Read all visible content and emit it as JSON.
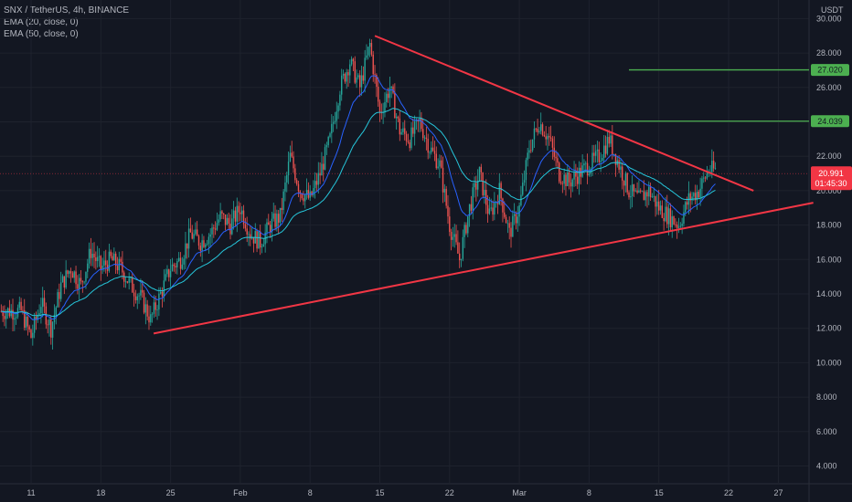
{
  "legend": {
    "symbol_line": "SNX / TetherUS, 4h, BINANCE",
    "ema1": "EMA (20, close, 0)",
    "ema2": "EMA (50, close, 0)"
  },
  "colors": {
    "background": "#131722",
    "grid": "#1e222d",
    "axis_text": "#b2b5be",
    "trendline": "#f23645",
    "target_line": "#4caf50",
    "target_label_bg": "#4caf50",
    "price_label_bg": "#f23645",
    "ema20": "#2962ff",
    "ema50": "#26c6da",
    "candle_up": "#26a69a",
    "candle_down": "#ef5350"
  },
  "chart_data": {
    "type": "candlestick",
    "currency_label": "USDT",
    "y_ticks": [
      "4.000",
      "6.000",
      "8.000",
      "10.000",
      "12.000",
      "14.000",
      "16.000",
      "18.000",
      "20.000",
      "22.000",
      "24.000",
      "26.000",
      "28.000",
      "30.000"
    ],
    "ylim": [
      3.0,
      31.0
    ],
    "x_ticks": [
      {
        "label": "11",
        "day": 0
      },
      {
        "label": "18",
        "day": 7
      },
      {
        "label": "25",
        "day": 14
      },
      {
        "label": "Feb",
        "day": 21
      },
      {
        "label": "8",
        "day": 28
      },
      {
        "label": "15",
        "day": 35
      },
      {
        "label": "22",
        "day": 42
      },
      {
        "label": "Mar",
        "day": 49
      },
      {
        "label": "8",
        "day": 56
      },
      {
        "label": "15",
        "day": 63
      },
      {
        "label": "22",
        "day": 70
      },
      {
        "label": "27",
        "day": 75
      }
    ],
    "current_price": {
      "value": 20.991,
      "label": "20.991",
      "countdown": "01:45:30"
    },
    "target_levels": [
      {
        "value": 27.02,
        "label": "27.020"
      },
      {
        "value": 24.039,
        "label": "24.039"
      }
    ],
    "trendlines": [
      {
        "name": "upper",
        "points": [
          [
            34.5,
            29.0
          ],
          [
            72.5,
            20.0
          ]
        ]
      },
      {
        "name": "lower",
        "points": [
          [
            12.3,
            11.7
          ],
          [
            78.5,
            19.3
          ]
        ]
      }
    ],
    "price_path": [
      [
        -1,
        13
      ],
      [
        0,
        11.5
      ],
      [
        1,
        13.5
      ],
      [
        2,
        12
      ],
      [
        3,
        14.5
      ],
      [
        4,
        15.5
      ],
      [
        5,
        14.5
      ],
      [
        6,
        16.5
      ],
      [
        7,
        15.5
      ],
      [
        8,
        16
      ],
      [
        9,
        15.5
      ],
      [
        10,
        14.5
      ],
      [
        11,
        13.8
      ],
      [
        12,
        12.5
      ],
      [
        13,
        14
      ],
      [
        14,
        15.5
      ],
      [
        15,
        16
      ],
      [
        16,
        17.5
      ],
      [
        17,
        17
      ],
      [
        18,
        17.5
      ],
      [
        19,
        18.5
      ],
      [
        20,
        18
      ],
      [
        21,
        19
      ],
      [
        22,
        17.5
      ],
      [
        23,
        17
      ],
      [
        24,
        18
      ],
      [
        25,
        18.5
      ],
      [
        26,
        22
      ],
      [
        27,
        20
      ],
      [
        28,
        19.5
      ],
      [
        29,
        21
      ],
      [
        30,
        23
      ],
      [
        31,
        26
      ],
      [
        32,
        27.5
      ],
      [
        33,
        26
      ],
      [
        34,
        28.5
      ],
      [
        35,
        24.5
      ],
      [
        36,
        26
      ],
      [
        37,
        23.5
      ],
      [
        38,
        23
      ],
      [
        39,
        24
      ],
      [
        40,
        22.5
      ],
      [
        41,
        21.5
      ],
      [
        42,
        18
      ],
      [
        43,
        16
      ],
      [
        44,
        19
      ],
      [
        45,
        21
      ],
      [
        46,
        18.5
      ],
      [
        47,
        20
      ],
      [
        48,
        17.5
      ],
      [
        49,
        19
      ],
      [
        50,
        22.5
      ],
      [
        51,
        24
      ],
      [
        52,
        23
      ],
      [
        53,
        21
      ],
      [
        54,
        20.5
      ],
      [
        55,
        21
      ],
      [
        56,
        21.5
      ],
      [
        57,
        22
      ],
      [
        58,
        23
      ],
      [
        59,
        21.5
      ],
      [
        60,
        20
      ],
      [
        61,
        19.5
      ],
      [
        62,
        20
      ],
      [
        63,
        19
      ],
      [
        64,
        18.5
      ],
      [
        65,
        18
      ],
      [
        66,
        19.5
      ],
      [
        67,
        20
      ],
      [
        68,
        21.2
      ]
    ]
  }
}
